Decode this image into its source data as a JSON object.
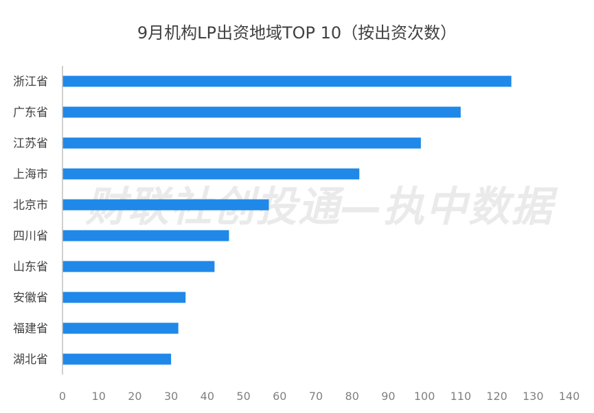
{
  "chart_data": {
    "type": "bar",
    "orientation": "horizontal",
    "title": "9月机构LP出资地域TOP 10（按出资次数）",
    "categories": [
      "浙江省",
      "广东省",
      "江苏省",
      "上海市",
      "北京市",
      "四川省",
      "山东省",
      "安徽省",
      "福建省",
      "湖北省"
    ],
    "values": [
      124,
      110,
      99,
      82,
      57,
      46,
      42,
      34,
      32,
      30
    ],
    "xlim": [
      0,
      140
    ],
    "xticks": [
      "0",
      "10",
      "20",
      "30",
      "40",
      "50",
      "60",
      "70",
      "80",
      "90",
      "100",
      "110",
      "120",
      "130",
      "140"
    ],
    "bar_color": "#1f88e8",
    "grid": false,
    "watermark": "财联社创投通—执中数据"
  }
}
